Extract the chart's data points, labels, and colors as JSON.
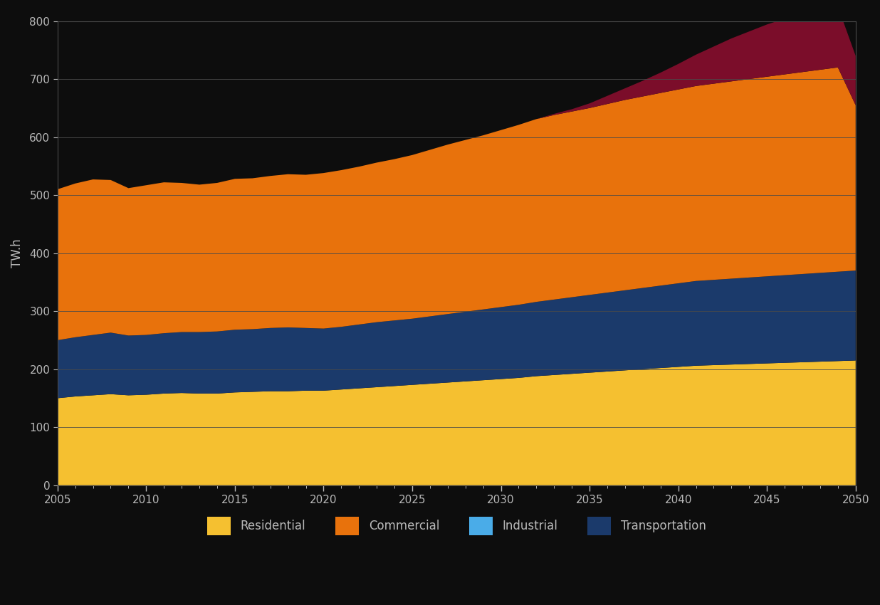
{
  "ylabel": "TW.h",
  "ylim": [
    0,
    800
  ],
  "yticks": [
    0,
    100,
    200,
    300,
    400,
    500,
    600,
    700,
    800
  ],
  "xlim": [
    2005,
    2050
  ],
  "xticks": [
    2005,
    2010,
    2015,
    2020,
    2025,
    2030,
    2035,
    2040,
    2045,
    2050
  ],
  "background_color": "#0d0d0d",
  "plot_bg_color": "#0d0d0d",
  "text_color": "#b8b8b8",
  "grid_color": "#4a4a4a",
  "years": [
    2005,
    2006,
    2007,
    2008,
    2009,
    2010,
    2011,
    2012,
    2013,
    2014,
    2015,
    2016,
    2017,
    2018,
    2019,
    2020,
    2021,
    2022,
    2023,
    2024,
    2025,
    2026,
    2027,
    2028,
    2029,
    2030,
    2031,
    2032,
    2033,
    2034,
    2035,
    2036,
    2037,
    2038,
    2039,
    2040,
    2041,
    2042,
    2043,
    2044,
    2045,
    2046,
    2047,
    2048,
    2049,
    2050
  ],
  "residential": [
    150,
    153,
    155,
    157,
    155,
    156,
    158,
    159,
    158,
    158,
    160,
    161,
    162,
    162,
    163,
    163,
    165,
    167,
    169,
    171,
    173,
    175,
    177,
    179,
    181,
    183,
    185,
    188,
    190,
    192,
    194,
    196,
    198,
    200,
    202,
    204,
    206,
    207,
    208,
    209,
    210,
    211,
    212,
    213,
    214,
    215
  ],
  "transportation": [
    100,
    102,
    104,
    106,
    103,
    103,
    104,
    105,
    106,
    107,
    108,
    108,
    109,
    110,
    108,
    107,
    108,
    110,
    112,
    113,
    114,
    116,
    118,
    120,
    122,
    124,
    126,
    128,
    130,
    132,
    134,
    136,
    138,
    140,
    142,
    144,
    146,
    147,
    148,
    149,
    150,
    151,
    152,
    153,
    154,
    155
  ],
  "commercial": [
    260,
    265,
    268,
    263,
    254,
    258,
    260,
    257,
    254,
    256,
    260,
    260,
    262,
    264,
    264,
    268,
    270,
    272,
    275,
    278,
    282,
    287,
    292,
    296,
    300,
    305,
    310,
    315,
    318,
    320,
    322,
    325,
    328,
    330,
    332,
    334,
    336,
    338,
    340,
    342,
    344,
    346,
    348,
    350,
    352,
    285
  ],
  "maroon_top": [
    0,
    0,
    0,
    0,
    0,
    0,
    0,
    0,
    0,
    0,
    0,
    0,
    0,
    0,
    0,
    0,
    0,
    0,
    0,
    0,
    0,
    0,
    0,
    0,
    0,
    0,
    0,
    0,
    2,
    4,
    8,
    14,
    20,
    27,
    35,
    44,
    54,
    64,
    74,
    82,
    90,
    96,
    100,
    103,
    105,
    85
  ],
  "colors": {
    "residential": "#F5C030",
    "transportation": "#1B3A6B",
    "commercial": "#E8720C",
    "maroon_top": "#7B0D2A"
  },
  "legend_labels": [
    "Residential",
    "Commercial",
    "Industrial",
    "Transportation"
  ],
  "legend_colors": [
    "#F5C030",
    "#E8720C",
    "#4AACE8",
    "#1B3A6B"
  ]
}
